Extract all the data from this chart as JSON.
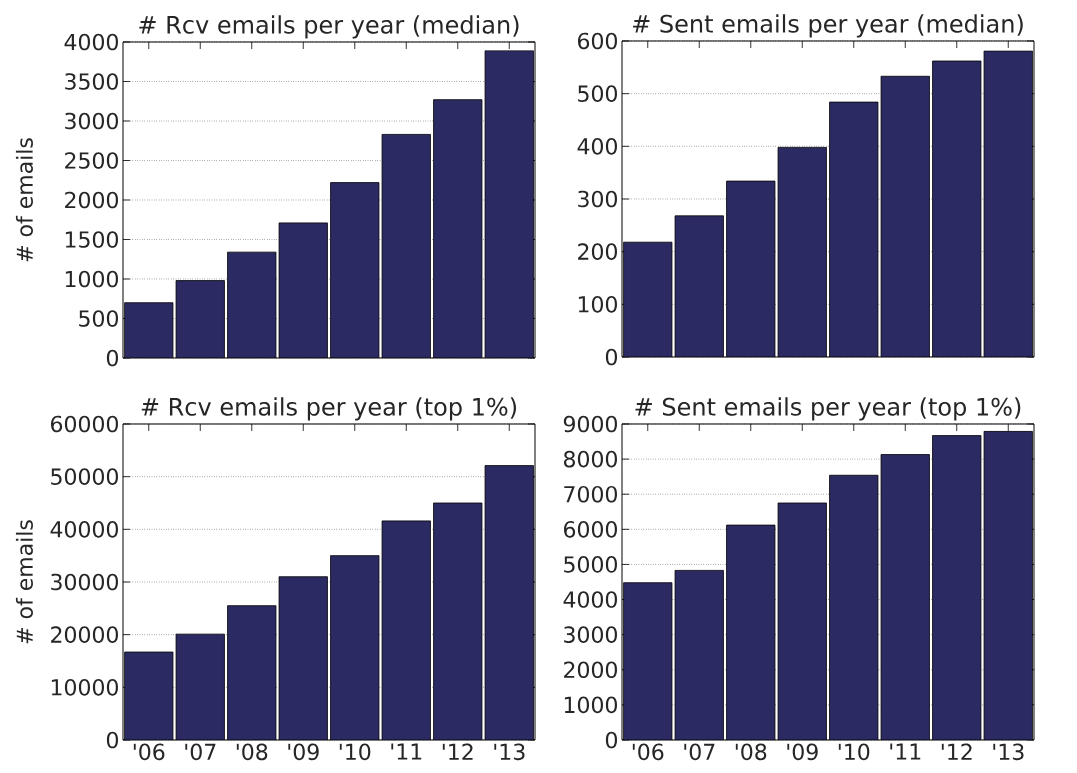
{
  "chart_data": [
    {
      "type": "bar",
      "title": "# Rcv emails per year (median)",
      "ylabel": "# of emails",
      "categories": [
        null,
        null,
        null,
        null,
        null,
        null,
        null,
        null
      ],
      "values": [
        700,
        980,
        1340,
        1710,
        2220,
        2830,
        3270,
        3890
      ],
      "color": "#2b2a62",
      "ylim": [
        0,
        4000
      ],
      "yticks": [
        0,
        500,
        1000,
        1500,
        2000,
        2500,
        3000,
        3500,
        4000
      ],
      "grid": "y"
    },
    {
      "type": "bar",
      "title": "# Sent emails per year (median)",
      "categories": [
        null,
        null,
        null,
        null,
        null,
        null,
        null,
        null
      ],
      "values": [
        218,
        268,
        334,
        398,
        484,
        533,
        562,
        581
      ],
      "color": "#2b2a62",
      "ylim": [
        0,
        600
      ],
      "yticks": [
        0,
        100,
        200,
        300,
        400,
        500,
        600
      ],
      "grid": "y"
    },
    {
      "type": "bar",
      "title": "# Rcv emails per year (top 1%)",
      "ylabel": "# of emails",
      "categories": [
        "'06",
        "'07",
        "'08",
        "'09",
        "'10",
        "'11",
        "'12",
        "'13"
      ],
      "values": [
        16700,
        20100,
        25500,
        31000,
        35000,
        41600,
        45000,
        52100
      ],
      "color": "#2b2a62",
      "ylim": [
        0,
        60000
      ],
      "yticks": [
        0,
        10000,
        20000,
        30000,
        40000,
        50000,
        60000
      ],
      "grid": "y"
    },
    {
      "type": "bar",
      "title": "# Sent emails per year (top 1%)",
      "categories": [
        "'06",
        "'07",
        "'08",
        "'09",
        "'10",
        "'11",
        "'12",
        "'13"
      ],
      "values": [
        4480,
        4830,
        6120,
        6750,
        7540,
        8130,
        8670,
        8790
      ],
      "color": "#2b2a62",
      "ylim": [
        0,
        9000
      ],
      "yticks": [
        0,
        1000,
        2000,
        3000,
        4000,
        5000,
        6000,
        7000,
        8000,
        9000
      ],
      "grid": "y"
    }
  ]
}
